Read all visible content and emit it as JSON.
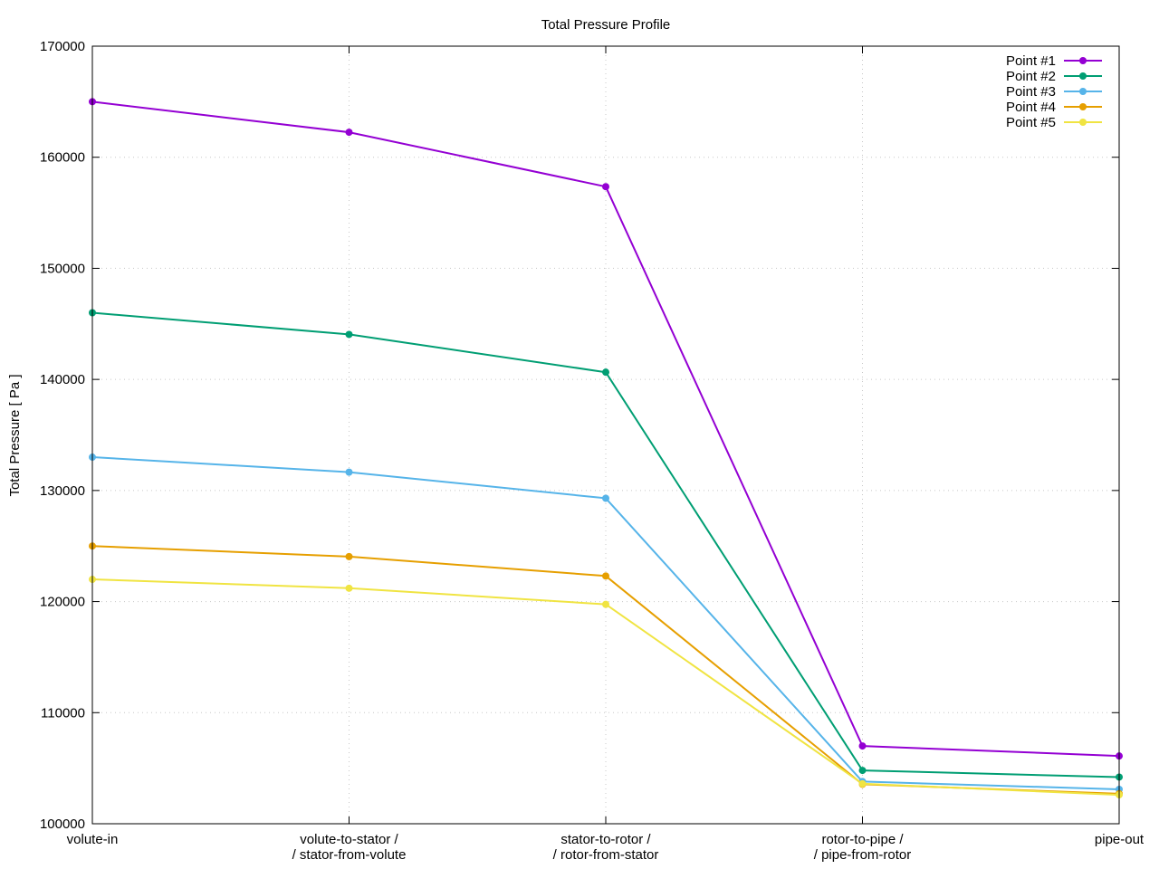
{
  "chart_data": {
    "type": "line",
    "title": "Total Pressure Profile",
    "xlabel": "",
    "ylabel": "Total Pressure [ Pa ]",
    "categories": [
      [
        "volute-in"
      ],
      [
        "volute-to-stator /",
        "/ stator-from-volute"
      ],
      [
        "stator-to-rotor /",
        "/ rotor-from-stator"
      ],
      [
        "rotor-to-pipe /",
        "/ pipe-from-rotor"
      ],
      [
        "pipe-out"
      ]
    ],
    "ylim": [
      100000,
      170000
    ],
    "yticks": [
      100000,
      110000,
      120000,
      130000,
      140000,
      150000,
      160000,
      170000
    ],
    "grid": true,
    "legend_position": "top-right",
    "series": [
      {
        "name": "Point #1",
        "color": "#9400d3",
        "values": [
          165000,
          162250,
          157350,
          107000,
          106100
        ]
      },
      {
        "name": "Point #2",
        "color": "#009e73",
        "values": [
          146000,
          144050,
          140650,
          104800,
          104200
        ]
      },
      {
        "name": "Point #3",
        "color": "#56b4e9",
        "values": [
          133000,
          131650,
          129300,
          103800,
          103100
        ]
      },
      {
        "name": "Point #4",
        "color": "#e69f00",
        "values": [
          125000,
          124050,
          122300,
          103550,
          102700
        ]
      },
      {
        "name": "Point #5",
        "color": "#f0e442",
        "values": [
          122000,
          121200,
          119750,
          103600,
          102600
        ]
      }
    ]
  }
}
